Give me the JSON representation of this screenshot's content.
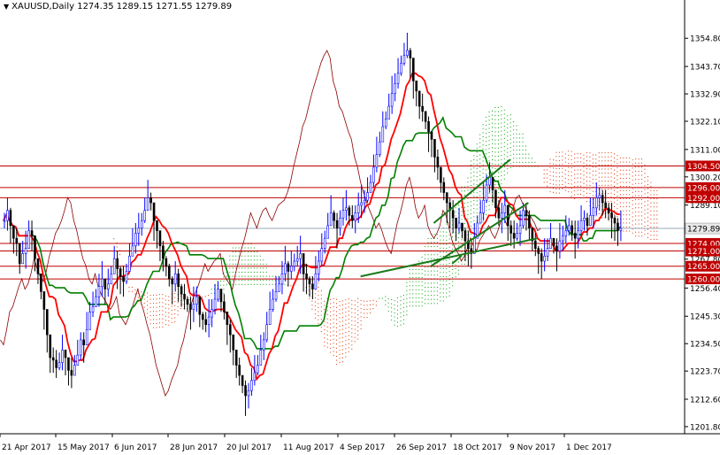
{
  "header": {
    "symbol": "XAUUSD,Daily",
    "ohlc": "1274.35 1289.15 1271.55 1279.89"
  },
  "colors": {
    "background": "#ffffff",
    "up_candle": "#0000ff",
    "down_candle": "#000000",
    "tenkan": "#ff0000",
    "kijun": "#008000",
    "chikou": "#8b0000",
    "kumo_bull": "#00a000",
    "kumo_bear": "#e03000",
    "hline": "#c00000",
    "trendline": "#1a7a1a",
    "current_price_line": "#9aa9b8",
    "price_tag_bg": "#c00000",
    "price_tag_fg": "#ffffff"
  },
  "chart_data": {
    "type": "candlestick",
    "instrument": "XAUUSD",
    "timeframe": "Daily",
    "last_ohlc": {
      "open": 1274.35,
      "high": 1289.15,
      "low": 1271.55,
      "close": 1279.89
    },
    "y_range": [
      1199,
      1365
    ],
    "y_ticks": [
      "1354.80",
      "1343.70",
      "1332.90",
      "1322.10",
      "1311.00",
      "1300.20",
      "1289.10",
      "1267.80",
      "1256.40",
      "1245.30",
      "1234.50",
      "1223.70",
      "1212.60",
      "1201.80"
    ],
    "x_ticks": [
      "21 Apr 2017",
      "15 May 2017",
      "6 Jun 2017",
      "28 Jun 2017",
      "20 Jul 2017",
      "11 Aug 2017",
      "4 Sep 2017",
      "26 Sep 2017",
      "18 Oct 2017",
      "9 Nov 2017",
      "1 Dec 2017"
    ],
    "horizontal_levels": [
      {
        "label": "1304.50",
        "value": 1304.5
      },
      {
        "label": "1296.00",
        "value": 1296.0
      },
      {
        "label": "1292.00",
        "value": 1292.0
      },
      {
        "label": "1274.00",
        "value": 1274.0
      },
      {
        "label": "1271.00",
        "value": 1271.0
      },
      {
        "label": "1265.00",
        "value": 1265.0
      },
      {
        "label": "1260.00",
        "value": 1260.0
      }
    ],
    "current_price": {
      "label": "1279.89",
      "value": 1279.89
    },
    "trendlines": [
      {
        "from": {
          "bar": 117,
          "price": 1261
        },
        "to": {
          "bar": 175,
          "price": 1276
        }
      },
      {
        "from": {
          "bar": 140,
          "price": 1265
        },
        "to": {
          "bar": 172,
          "price": 1290
        }
      },
      {
        "from": {
          "bar": 141,
          "price": 1282
        },
        "to": {
          "bar": 166,
          "price": 1307
        }
      },
      {
        "from": {
          "bar": 147,
          "price": 1266
        },
        "to": {
          "bar": 150,
          "price": 1269
        }
      }
    ],
    "indicators": [
      "Ichimoku Kinko Hyo (Tenkan-sen, Kijun-sen, Chikou Span, Kumo)"
    ],
    "candles_close": [
      1283,
      1287,
      1281,
      1276,
      1274,
      1266,
      1270,
      1272,
      1279,
      1277,
      1268,
      1262,
      1255,
      1248,
      1238,
      1229,
      1228,
      1225,
      1227,
      1232,
      1229,
      1224,
      1222,
      1226,
      1230,
      1236,
      1234,
      1240,
      1247,
      1249,
      1253,
      1257,
      1260,
      1256,
      1258,
      1262,
      1268,
      1264,
      1261,
      1259,
      1263,
      1269,
      1273,
      1278,
      1280,
      1283,
      1287,
      1292,
      1290,
      1283,
      1279,
      1273,
      1268,
      1265,
      1260,
      1258,
      1262,
      1257,
      1254,
      1252,
      1250,
      1248,
      1250,
      1253,
      1246,
      1244,
      1242,
      1245,
      1248,
      1252,
      1256,
      1251,
      1247,
      1242,
      1238,
      1232,
      1226,
      1222,
      1218,
      1214,
      1216,
      1220,
      1223,
      1226,
      1232,
      1236,
      1242,
      1248,
      1252,
      1255,
      1258,
      1262,
      1266,
      1263,
      1265,
      1267,
      1268,
      1270,
      1262,
      1260,
      1258,
      1256,
      1262,
      1267,
      1272,
      1276,
      1281,
      1286,
      1283,
      1280,
      1284,
      1287,
      1288,
      1285,
      1283,
      1286,
      1289,
      1290,
      1291,
      1294,
      1298,
      1304,
      1309,
      1314,
      1320,
      1323,
      1328,
      1333,
      1337,
      1341,
      1345,
      1348,
      1350,
      1347,
      1338,
      1334,
      1328,
      1326,
      1322,
      1318,
      1315,
      1308,
      1304,
      1298,
      1294,
      1290,
      1287,
      1284,
      1280,
      1282,
      1279,
      1275,
      1272,
      1270,
      1276,
      1282,
      1286,
      1291,
      1297,
      1300,
      1295,
      1288,
      1284,
      1286,
      1289,
      1281,
      1278,
      1276,
      1278,
      1281,
      1287,
      1285,
      1280,
      1275,
      1272,
      1270,
      1267,
      1269,
      1272,
      1276,
      1273,
      1271,
      1275,
      1277,
      1279,
      1281,
      1278,
      1276,
      1279,
      1283,
      1284,
      1281,
      1285,
      1288,
      1292,
      1293,
      1290,
      1288,
      1286,
      1284,
      1282,
      1279,
      1279.89
    ]
  }
}
